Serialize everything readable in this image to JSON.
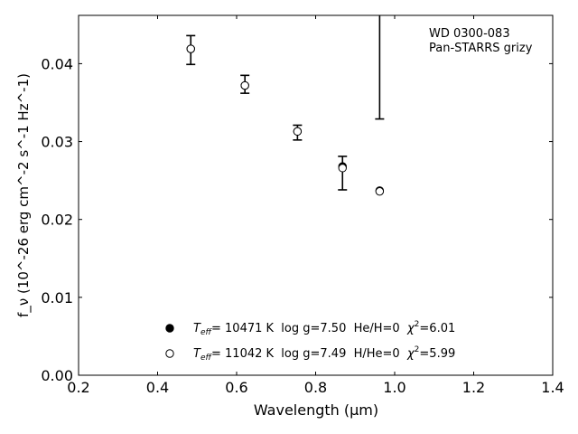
{
  "chart_data": {
    "type": "scatter",
    "title": "",
    "xlabel": "Wavelength (μm)",
    "ylabel": "f_ν (10^-26 erg cm^-2 s^-1 Hz^-1)",
    "xlim": [
      0.2,
      1.4
    ],
    "ylim": [
      0.0,
      0.0462
    ],
    "x_ticks": [
      0.2,
      0.4,
      0.6,
      0.8,
      1.0,
      1.2,
      1.4
    ],
    "y_ticks": [
      0.0,
      0.01,
      0.02,
      0.03,
      0.04
    ],
    "x_tick_labels": [
      "0.2",
      "0.4",
      "0.6",
      "0.8",
      "1.0",
      "1.2",
      "1.4"
    ],
    "y_tick_labels": [
      "0.00",
      "0.01",
      "0.02",
      "0.03",
      "0.04"
    ],
    "annotation": [
      "WD 0300-083",
      "Pan-STARRS grizy"
    ],
    "observed": {
      "x": [
        0.484,
        0.621,
        0.754,
        0.868,
        0.962
      ],
      "y": [
        0.0418,
        0.0374,
        0.0311,
        0.026,
        0.0398
      ],
      "yerr_low": [
        0.0399,
        0.0362,
        0.0302,
        0.0238,
        0.0329
      ],
      "yerr_high": [
        0.0436,
        0.0385,
        0.0321,
        0.0281,
        0.0462
      ]
    },
    "series": [
      {
        "marker": "filled",
        "x": [
          0.484,
          0.621,
          0.754,
          0.868,
          0.962
        ],
        "y": [
          0.0419,
          0.0372,
          0.0313,
          0.0268,
          0.0237
        ]
      },
      {
        "marker": "open",
        "x": [
          0.484,
          0.621,
          0.754,
          0.868,
          0.962
        ],
        "y": [
          0.0419,
          0.0372,
          0.0313,
          0.0266,
          0.0236
        ]
      }
    ],
    "legend": {
      "placement": "lower-center",
      "entries": [
        {
          "marker": "filled",
          "teff_sym": "T",
          "teff_sub": "eff",
          "text": "= 10471 K  log g=7.50  He/H=0  ",
          "chi_sym": "χ",
          "chi_sup": "2",
          "chi_val": "=6.01"
        },
        {
          "marker": "open",
          "teff_sym": "T",
          "teff_sub": "eff",
          "text": "= 11042 K  log g=7.49  H/He=0  ",
          "chi_sym": "χ",
          "chi_sup": "2",
          "chi_val": "=5.99"
        }
      ]
    }
  }
}
